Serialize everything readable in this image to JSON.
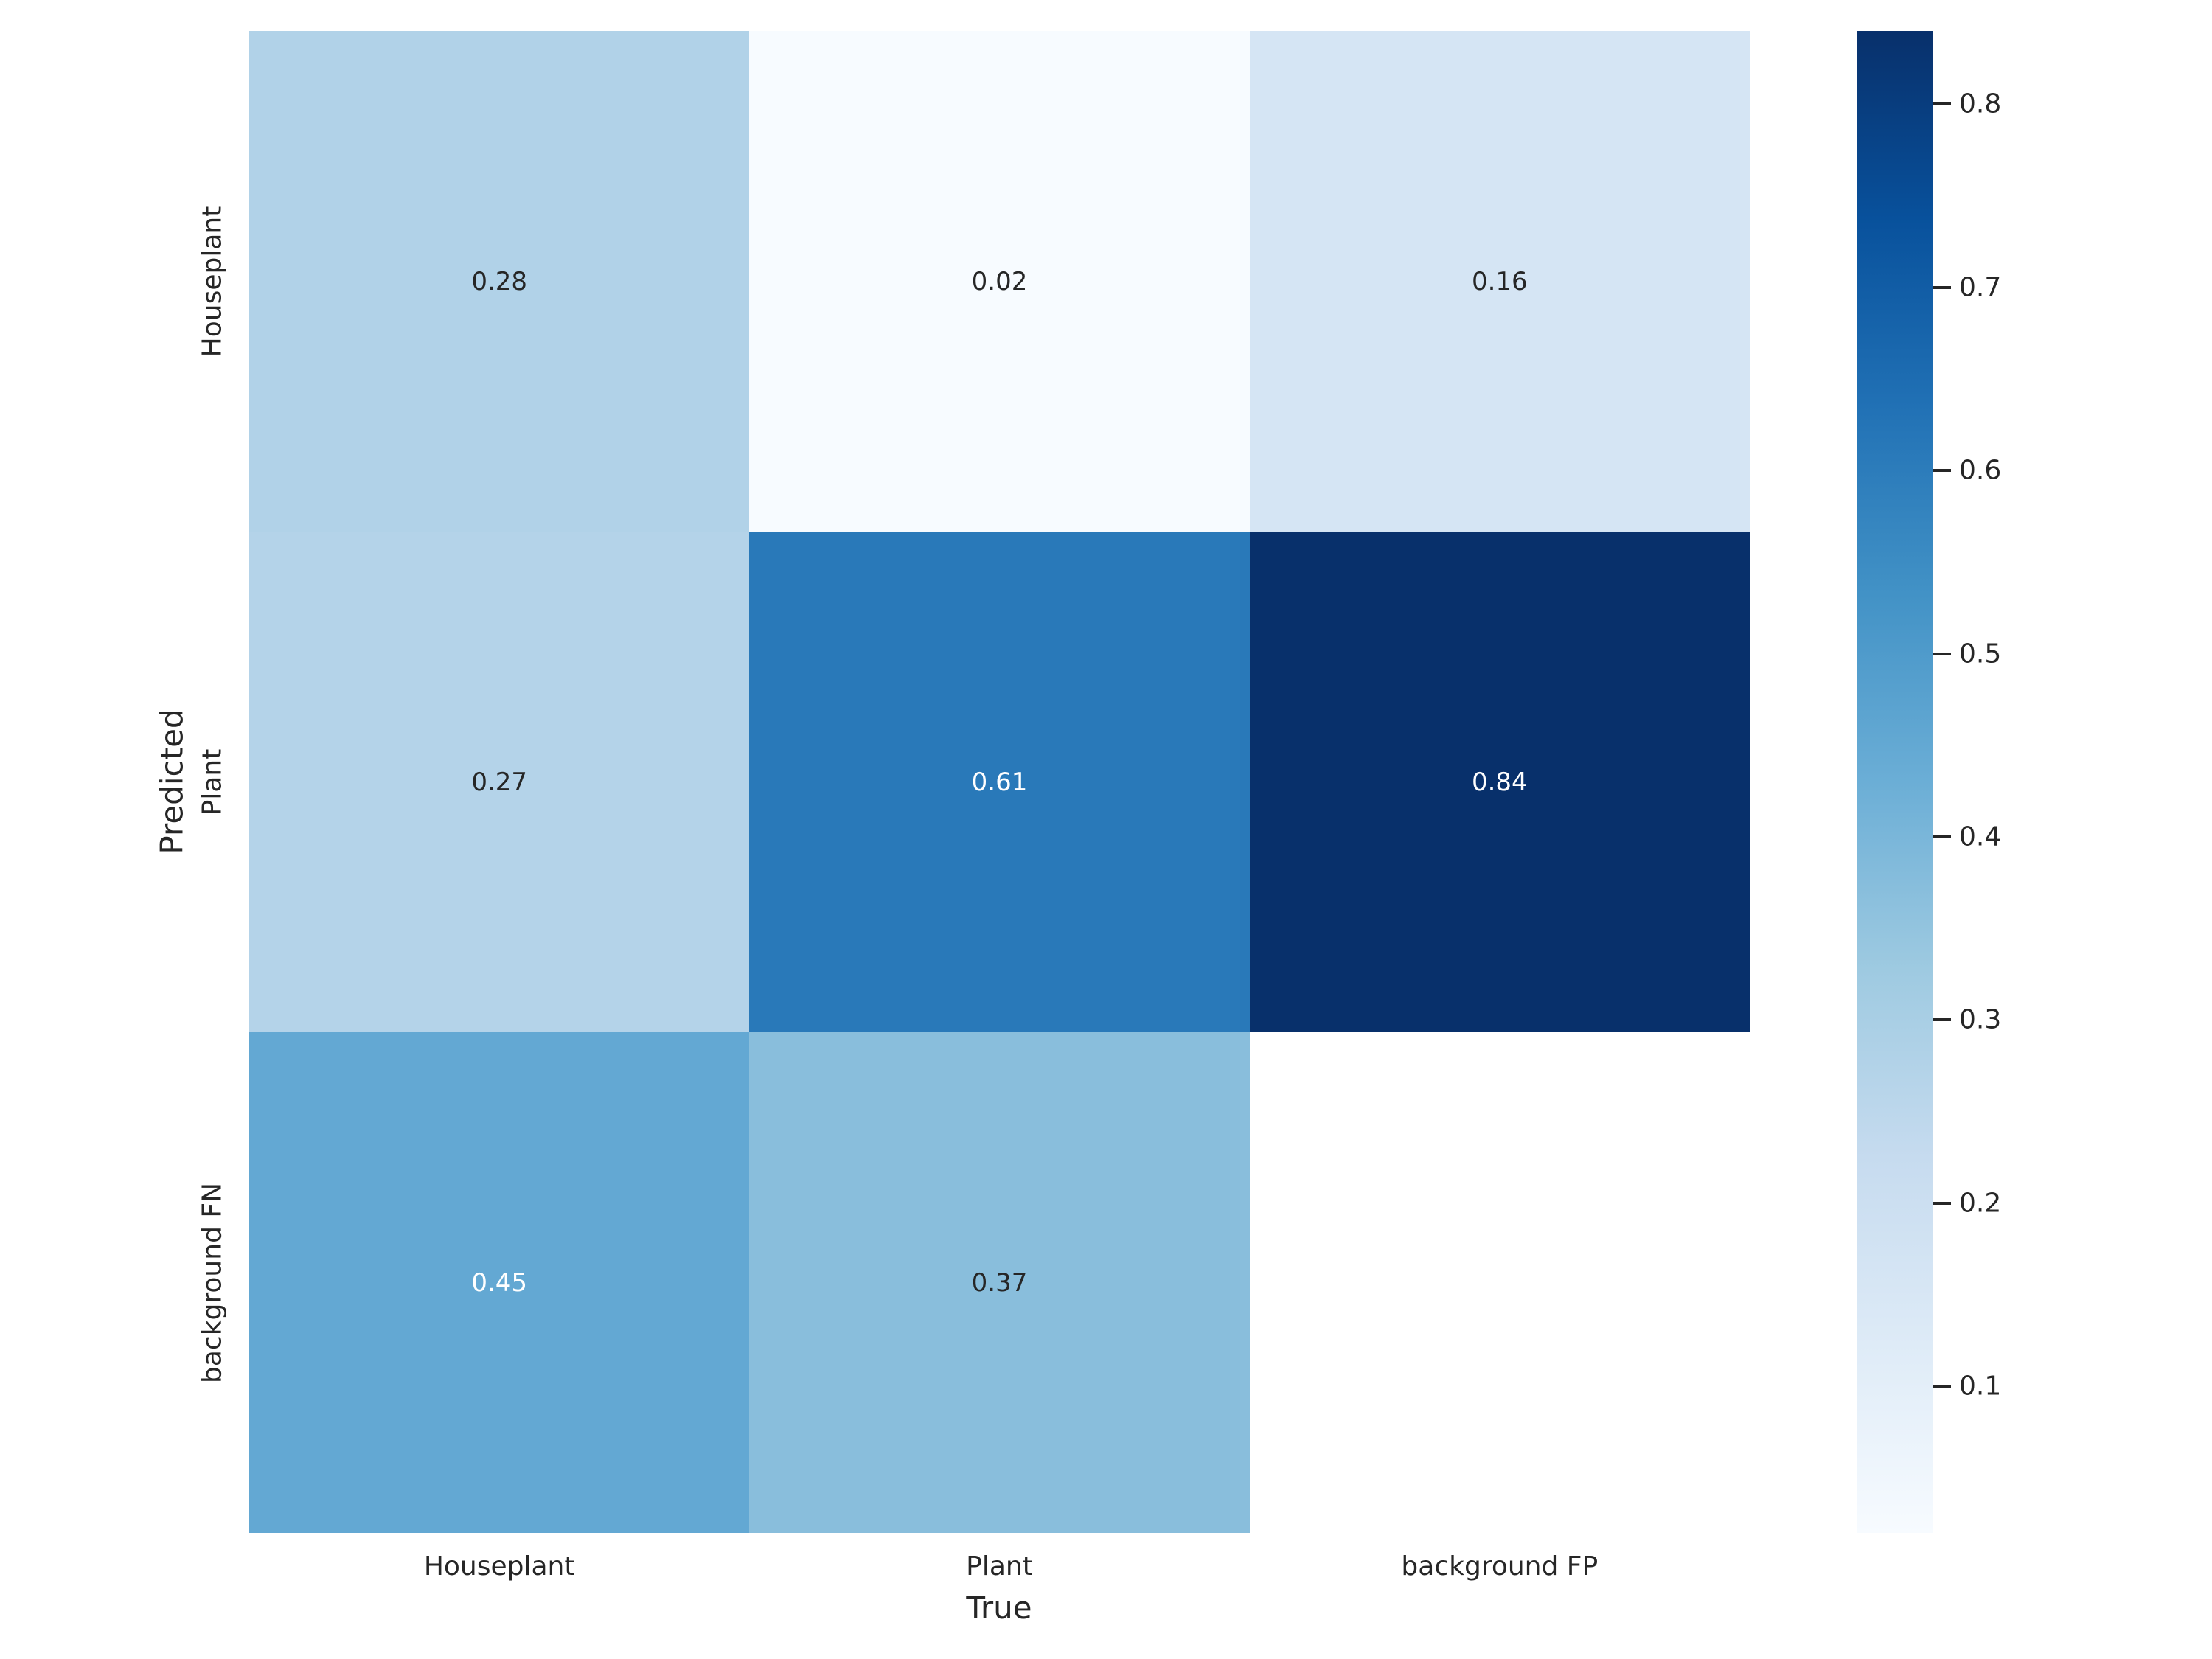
{
  "figure": {
    "background": "#ffffff",
    "text_color": "#262626"
  },
  "chart_data": {
    "type": "heatmap",
    "title": "",
    "xlabel": "True",
    "ylabel": "Predicted",
    "x_categories": [
      "Houseplant",
      "Plant",
      "background FP"
    ],
    "y_categories": [
      "Houseplant",
      "Plant",
      "background FN"
    ],
    "values": [
      [
        0.28,
        0.02,
        0.16
      ],
      [
        0.27,
        0.61,
        0.84
      ],
      [
        0.45,
        0.37,
        null
      ]
    ],
    "cell_labels": [
      [
        "0.28",
        "0.02",
        "0.16"
      ],
      [
        "0.27",
        "0.61",
        "0.84"
      ],
      [
        "0.45",
        "0.37",
        ""
      ]
    ],
    "cell_colors": [
      [
        "#b1d2e8",
        "#f7fbff",
        "#d5e5f4"
      ],
      [
        "#b4d3e9",
        "#2979b9",
        "#08306b"
      ],
      [
        "#63a8d3",
        "#89bedc",
        "#ffffff"
      ]
    ],
    "cell_text_colors": [
      [
        "#262626",
        "#262626",
        "#262626"
      ],
      [
        "#262626",
        "#ffffff",
        "#ffffff"
      ],
      [
        "#ffffff",
        "#262626",
        "#262626"
      ]
    ],
    "masked_cells": [
      [
        2,
        2
      ]
    ],
    "colormap": "Blues",
    "vmin": 0.02,
    "vmax": 0.84,
    "grid": false,
    "legend_position": "right",
    "colorbar": {
      "tick_labels": [
        "0.8",
        "0.7",
        "0.6",
        "0.5",
        "0.4",
        "0.3",
        "0.2",
        "0.1"
      ],
      "tick_values": [
        0.8,
        0.7,
        0.6,
        0.5,
        0.4,
        0.3,
        0.2,
        0.1
      ],
      "gradient_top_to_bottom": [
        "#08306b",
        "#08519c",
        "#2171b5",
        "#4292c6",
        "#6baed6",
        "#9ecae1",
        "#c6dbef",
        "#deebf7",
        "#f7fbff"
      ]
    }
  }
}
